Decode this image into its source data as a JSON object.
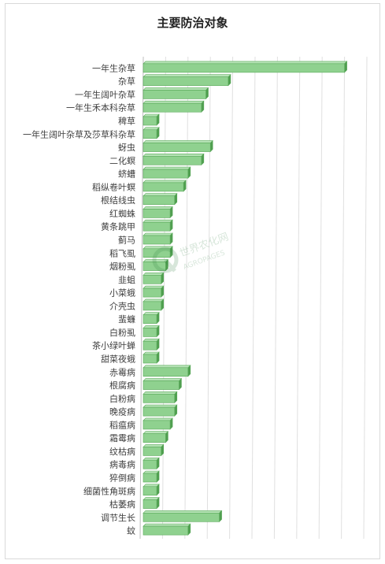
{
  "chart_data": {
    "type": "bar",
    "orientation": "horizontal",
    "title": "主要防治对象",
    "grid": true,
    "bar_color": "#8fd18f",
    "bar_edge_color": "#5aa95a",
    "categories": [
      "一年生杂草",
      "杂草",
      "一年生阔叶杂草",
      "一年生禾本科杂草",
      "稗草",
      "一年生阔叶杂草及莎草科杂草",
      "蚜虫",
      "二化螟",
      "蛴螬",
      "稻纵卷叶螟",
      "根结线虫",
      "红蜘蛛",
      "黄条跳甲",
      "蓟马",
      "稻飞虱",
      "烟粉虱",
      "韭蛆",
      "小菜蛾",
      "介壳虫",
      "蜚蠊",
      "白粉虱",
      "茶小绿叶蝉",
      "甜菜夜蛾",
      "赤霉病",
      "根腐病",
      "白粉病",
      "晚疫病",
      "稻瘟病",
      "霜霉病",
      "纹枯病",
      "病毒病",
      "猝倒病",
      "细菌性角斑病",
      "枯萎病",
      "调节生长",
      "蚊"
    ],
    "values": [
      45,
      19,
      14,
      13,
      3,
      3,
      15,
      13,
      10,
      9,
      7,
      6,
      6,
      6,
      6,
      5,
      4,
      4,
      4,
      3,
      3,
      3,
      3,
      10,
      8,
      7,
      7,
      6,
      5,
      4,
      3,
      3,
      3,
      3,
      17,
      10
    ],
    "xlim": [
      0,
      50
    ]
  },
  "watermark": {
    "cn": "世界农化网",
    "en": "AGROPAGES"
  }
}
